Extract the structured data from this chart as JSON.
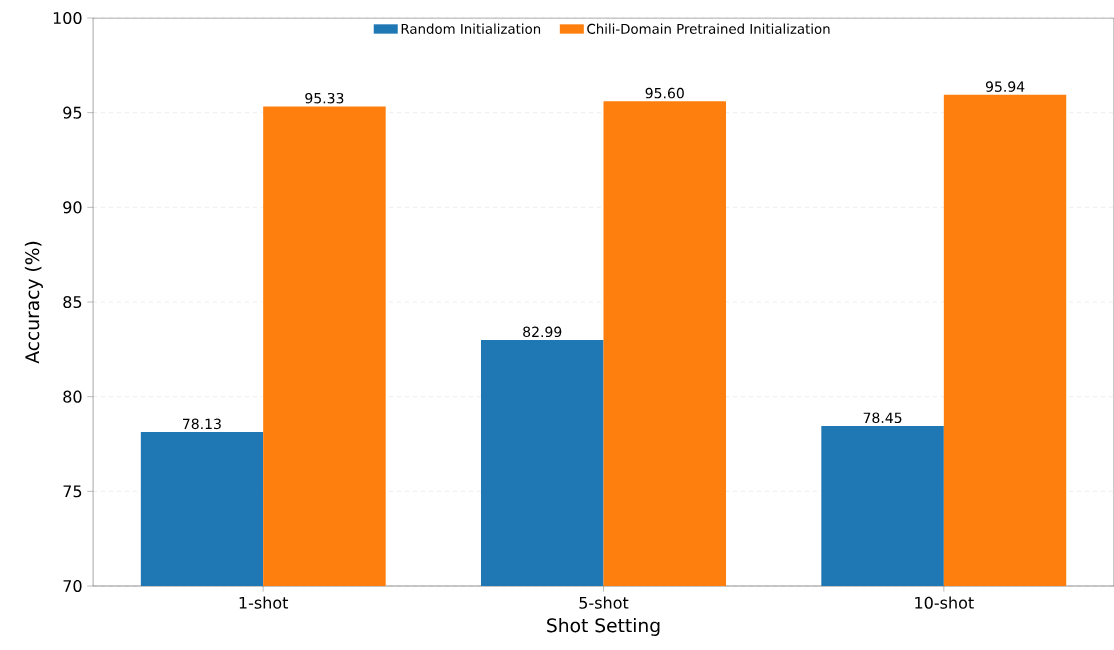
{
  "chart_data": {
    "type": "bar",
    "xlabel": "Shot Setting",
    "ylabel": "Accuracy (%)",
    "categories": [
      "1-shot",
      "5-shot",
      "10-shot"
    ],
    "series": [
      {
        "name": "Random Initialization",
        "color": "#1f77b4",
        "values": [
          78.13,
          82.99,
          78.45
        ],
        "value_labels": [
          "78.13",
          "82.99",
          "78.45"
        ]
      },
      {
        "name": "Chili-Domain Pretrained Initialization",
        "color": "#ff7f0e",
        "values": [
          95.33,
          95.6,
          95.94
        ],
        "value_labels": [
          "95.33",
          "95.60",
          "95.94"
        ]
      }
    ],
    "ylim": [
      70,
      100
    ],
    "yticks": [
      70,
      75,
      80,
      85,
      90,
      95,
      100
    ],
    "grid": "y",
    "legend": "top"
  }
}
